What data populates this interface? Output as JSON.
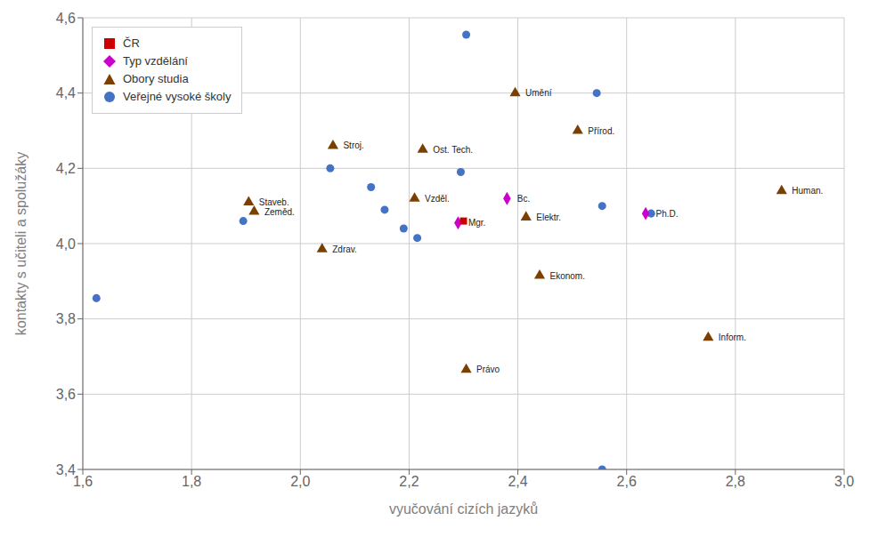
{
  "chart_data": {
    "type": "scatter",
    "xlabel": "vyučování cizích jazyků",
    "ylabel": "kontakty s učiteli a spolužáky",
    "xlim": [
      1.6,
      3.0
    ],
    "ylim": [
      3.4,
      4.6
    ],
    "xticks": [
      {
        "value": 1.6,
        "label": "1,6"
      },
      {
        "value": 1.8,
        "label": "1,8"
      },
      {
        "value": 2.0,
        "label": "2,0"
      },
      {
        "value": 2.2,
        "label": "2,2"
      },
      {
        "value": 2.4,
        "label": "2,4"
      },
      {
        "value": 2.6,
        "label": "2,6"
      },
      {
        "value": 2.8,
        "label": "2,8"
      },
      {
        "value": 3.0,
        "label": "3,0"
      }
    ],
    "yticks": [
      {
        "value": 3.4,
        "label": "3,4"
      },
      {
        "value": 3.6,
        "label": "3,6"
      },
      {
        "value": 3.8,
        "label": "3,8"
      },
      {
        "value": 4.0,
        "label": "4,0"
      },
      {
        "value": 4.2,
        "label": "4,2"
      },
      {
        "value": 4.4,
        "label": "4,4"
      },
      {
        "value": 4.6,
        "label": "4,6"
      }
    ],
    "grid": true,
    "legend": "upper left",
    "series": [
      {
        "name": "ČR",
        "color": "#cc0000",
        "marker": "square",
        "x": [
          2.3
        ],
        "values": [
          4.06
        ]
      },
      {
        "name": "Typ vzdělání",
        "color": "#cc00cc",
        "marker": "diamond",
        "x": [
          2.38,
          2.29,
          2.635
        ],
        "values": [
          4.12,
          4.055,
          4.08
        ],
        "labels": [
          "Bc.",
          "Mgr.",
          "Ph.D."
        ]
      },
      {
        "name": "Obory studia",
        "color": "#7b3f00",
        "marker": "triangle",
        "x": [
          2.06,
          2.225,
          2.21,
          2.395,
          2.51,
          1.905,
          1.915,
          2.04,
          2.44,
          2.415,
          2.75,
          2.305,
          2.885
        ],
        "values": [
          4.26,
          4.25,
          4.12,
          4.4,
          4.3,
          4.11,
          4.085,
          3.985,
          3.915,
          4.07,
          3.75,
          3.665,
          4.14
        ],
        "labels": [
          "Stroj.",
          "Ost. Tech.",
          "Vzděl.",
          "Umění",
          "Přírod.",
          "Staveb.",
          "Zeměd.",
          "Zdrav.",
          "Ekonom.",
          "Elektr.",
          "Inform.",
          "Právo",
          "Human."
        ]
      },
      {
        "name": "Veřejné vysoké školy",
        "color": "#4472c4",
        "marker": "circle",
        "x": [
          1.625,
          1.895,
          2.055,
          2.13,
          2.155,
          2.19,
          2.215,
          2.295,
          2.305,
          2.545,
          2.555,
          2.555,
          2.645
        ],
        "values": [
          3.855,
          4.06,
          4.2,
          4.15,
          4.09,
          4.04,
          4.015,
          4.19,
          4.555,
          4.4,
          4.1,
          3.4,
          4.08
        ]
      }
    ]
  }
}
